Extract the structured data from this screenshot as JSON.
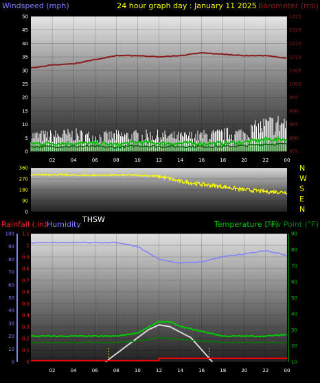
{
  "header": {
    "left_label": "Windspeed (mph)",
    "center_label": "24 hour graph day : January 11 2025",
    "right_label": "Barometer (mb)"
  },
  "panel2": {
    "compass": [
      "N",
      "W",
      "S",
      "E",
      "N"
    ],
    "thsw_label": "THSW"
  },
  "panel3": {
    "rain_label": "Rainfall (.in)",
    "humidity_label": "Humidity",
    "temp_label": "Temperature (°F)",
    "dew_label": "Dew Point (°F)"
  },
  "colors": {
    "wind_gust": "#ffffff",
    "wind_avg": "#00c000",
    "wind_light": "#90ee90",
    "barometer": "#8b1a1a",
    "wind_dir": "#ffff00",
    "humidity": "#8080ff",
    "temperature": "#00cc00",
    "dew_point": "#008000",
    "solar": "#d8d8d8",
    "rain": "#ff0000"
  },
  "chart_data": [
    {
      "type": "line",
      "x_ticks": [
        "02",
        "04",
        "06",
        "08",
        "10",
        "12",
        "14",
        "16",
        "18",
        "20",
        "22",
        "00"
      ],
      "y_left_ticks": [
        "0",
        "5",
        "10",
        "15",
        "20",
        "25",
        "30",
        "35",
        "40",
        "45",
        "50"
      ],
      "y_right_ticks": [
        "975",
        "980",
        "985",
        "990",
        "995",
        "1000",
        "1005",
        "1010",
        "1015",
        "1020",
        "1025"
      ],
      "ylim_left": [
        0,
        50
      ],
      "ylim_right": [
        975,
        1025
      ],
      "grid": true,
      "series": {
        "barometer_mb": [
          [
            0,
            1006
          ],
          [
            2,
            1007
          ],
          [
            4,
            1007.5
          ],
          [
            6,
            1009
          ],
          [
            8,
            1010.5
          ],
          [
            10,
            1010.5
          ],
          [
            12,
            1010
          ],
          [
            14,
            1010.5
          ],
          [
            16,
            1011.5
          ],
          [
            18,
            1011
          ],
          [
            20,
            1010.5
          ],
          [
            22,
            1010.5
          ],
          [
            24,
            1009.5
          ]
        ],
        "wind_avg_mph": [
          [
            0,
            3
          ],
          [
            2,
            3
          ],
          [
            4,
            3
          ],
          [
            6,
            3
          ],
          [
            8,
            2.5
          ],
          [
            10,
            3.5
          ],
          [
            12,
            3
          ],
          [
            14,
            3
          ],
          [
            16,
            3
          ],
          [
            18,
            3
          ],
          [
            20,
            3.5
          ],
          [
            22,
            4.5
          ],
          [
            24,
            4.5
          ]
        ],
        "wind_gust_mph": [
          [
            0,
            6
          ],
          [
            2,
            6
          ],
          [
            4,
            6.5
          ],
          [
            6,
            5.5
          ],
          [
            8,
            6
          ],
          [
            10,
            6
          ],
          [
            12,
            6
          ],
          [
            14,
            5.5
          ],
          [
            16,
            6
          ],
          [
            18,
            6.5
          ],
          [
            20,
            7
          ],
          [
            22,
            10
          ],
          [
            24,
            11
          ]
        ]
      }
    },
    {
      "type": "scatter",
      "y_ticks": [
        "0",
        "90",
        "180",
        "270",
        "360"
      ],
      "ylim": [
        0,
        360
      ],
      "series": {
        "wind_direction_deg": [
          [
            0,
            300
          ],
          [
            2,
            305
          ],
          [
            4,
            300
          ],
          [
            6,
            300
          ],
          [
            8,
            300
          ],
          [
            10,
            300
          ],
          [
            12,
            290
          ],
          [
            14,
            250
          ],
          [
            16,
            225
          ],
          [
            18,
            205
          ],
          [
            20,
            180
          ],
          [
            22,
            165
          ],
          [
            24,
            160
          ]
        ]
      }
    },
    {
      "type": "line",
      "x_ticks": [
        "02",
        "04",
        "06",
        "08",
        "10",
        "12",
        "14",
        "16",
        "18",
        "20",
        "22",
        "00"
      ],
      "y_left_ticks": [
        "0",
        "0.1",
        "0.2",
        "0.3",
        "0.4",
        "0.5",
        "0.6",
        "0.7",
        "0.8",
        "0.9",
        "1",
        "1.1"
      ],
      "y_humidity_ticks": [
        "0",
        "10",
        "20",
        "30",
        "40",
        "50",
        "60",
        "70",
        "80",
        "90",
        "100"
      ],
      "y_right_ticks": [
        "10",
        "20",
        "30",
        "40",
        "50",
        "60",
        "70",
        "80",
        "90"
      ],
      "ylim_left": [
        0,
        1.1
      ],
      "ylim_humidity": [
        0,
        100
      ],
      "ylim_right": [
        10,
        90
      ],
      "grid": true,
      "series": {
        "humidity_pct": [
          [
            0,
            93
          ],
          [
            4,
            93
          ],
          [
            8,
            93
          ],
          [
            10,
            90
          ],
          [
            11,
            85
          ],
          [
            12,
            80
          ],
          [
            14,
            77
          ],
          [
            16,
            78
          ],
          [
            18,
            82
          ],
          [
            20,
            84
          ],
          [
            22,
            87
          ],
          [
            24,
            83
          ]
        ],
        "temperature_F": [
          [
            0,
            26
          ],
          [
            4,
            26
          ],
          [
            6,
            26
          ],
          [
            8,
            26
          ],
          [
            10,
            28
          ],
          [
            12,
            35
          ],
          [
            13,
            35
          ],
          [
            14,
            32
          ],
          [
            16,
            29
          ],
          [
            18,
            26
          ],
          [
            20,
            26
          ],
          [
            22,
            26
          ],
          [
            24,
            27
          ]
        ],
        "dew_point_F": [
          [
            0,
            22
          ],
          [
            6,
            22
          ],
          [
            8,
            22
          ],
          [
            10,
            23
          ],
          [
            12,
            25
          ],
          [
            14,
            24
          ],
          [
            16,
            23
          ],
          [
            18,
            22
          ],
          [
            20,
            22
          ],
          [
            24,
            22
          ]
        ],
        "solar_F": [
          [
            7,
            10
          ],
          [
            9,
            20
          ],
          [
            11,
            30
          ],
          [
            12,
            33
          ],
          [
            13,
            32
          ],
          [
            15,
            25
          ],
          [
            17,
            10
          ]
        ],
        "rain_in": [
          [
            0,
            0.01
          ],
          [
            12,
            0.01
          ],
          [
            12,
            0.03
          ],
          [
            24,
            0.03
          ]
        ]
      }
    }
  ]
}
